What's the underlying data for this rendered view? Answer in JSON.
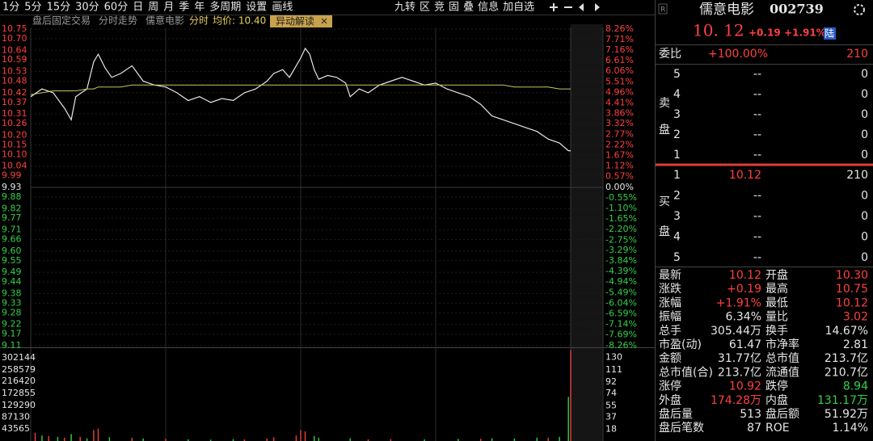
{
  "toolbar": {
    "periods": [
      "1分",
      "5分",
      "15分",
      "30分",
      "60分",
      "日",
      "周",
      "月",
      "季",
      "年",
      "多周期",
      "设置",
      "画线"
    ],
    "tools": [
      "九转",
      "区",
      "竞",
      "固",
      "叠",
      "信息",
      "加自选"
    ]
  },
  "subheader": {
    "items": [
      "盘后固定交易",
      "分时走势",
      "儒意电影",
      "分时"
    ],
    "avg_label": "均价: 10.40",
    "badge": "异动解读"
  },
  "chart_data": [
    {
      "type": "line",
      "xlim": [
        0,
        240
      ],
      "ylim": [
        9.11,
        10.75
      ],
      "y2lim": [
        -8.26,
        8.26
      ],
      "grid": true,
      "yticks": [
        10.75,
        {
          "value": 10.7,
          "label": "10.70"
        },
        10.64,
        10.59,
        10.53,
        10.48,
        10.42,
        10.37,
        10.31,
        10.26,
        {
          "value": 10.2,
          "label": "10.20"
        },
        10.15,
        {
          "value": 10.1,
          "label": "10.10"
        },
        10.04,
        9.99,
        9.93,
        9.88,
        9.82,
        9.77,
        9.71,
        9.66,
        {
          "value": 9.6,
          "label": "9.60"
        },
        9.55,
        9.49,
        9.44,
        9.38,
        9.33,
        9.28,
        9.22,
        9.17,
        9.11
      ],
      "y2ticks": [
        {
          "value": 8.26,
          "label": "8.26%"
        },
        {
          "value": 7.71,
          "label": "7.71%"
        },
        {
          "value": 7.16,
          "label": "7.16%"
        },
        {
          "value": 6.61,
          "label": "6.61%"
        },
        {
          "value": 6.06,
          "label": "6.06%"
        },
        {
          "value": 5.51,
          "label": "5.51%"
        },
        {
          "value": 4.96,
          "label": "4.96%"
        },
        {
          "value": 4.41,
          "label": "4.41%"
        },
        {
          "value": 3.86,
          "label": "3.86%"
        },
        {
          "value": 3.32,
          "label": "3.32%"
        },
        {
          "value": 2.77,
          "label": "2.77%"
        },
        {
          "value": 2.22,
          "label": "2.22%"
        },
        {
          "value": 1.67,
          "label": "1.67%"
        },
        {
          "value": 1.12,
          "label": "1.12%"
        },
        {
          "value": 0.57,
          "label": "0.57%"
        },
        {
          "value": 0,
          "label": "0.00%"
        },
        {
          "value": -0.55,
          "label": "-0.55%"
        },
        {
          "value": -1.1,
          "label": "-1.10%"
        },
        {
          "value": -1.65,
          "label": "-1.65%"
        },
        {
          "value": -2.2,
          "label": "-2.20%"
        },
        {
          "value": -2.75,
          "label": "-2.75%"
        },
        {
          "value": -3.29,
          "label": "-3.29%"
        },
        {
          "value": -3.84,
          "label": "-3.84%"
        },
        {
          "value": -4.39,
          "label": "-4.39%"
        },
        {
          "value": -4.94,
          "label": "-4.94%"
        },
        {
          "value": -5.49,
          "label": "-5.49%"
        },
        {
          "value": -6.04,
          "label": "-6.04%"
        },
        {
          "value": -6.59,
          "label": "-6.59%"
        },
        {
          "value": -7.14,
          "label": "-7.14%"
        },
        {
          "value": -7.69,
          "label": "-7.69%"
        },
        {
          "value": -8.26,
          "label": "-8.26%"
        }
      ],
      "x": [
        0,
        5,
        10,
        15,
        18,
        20,
        25,
        28,
        30,
        33,
        36,
        40,
        45,
        50,
        55,
        60,
        65,
        70,
        75,
        80,
        85,
        90,
        95,
        100,
        105,
        108,
        112,
        115,
        118,
        120,
        122,
        124,
        126,
        128,
        132,
        136,
        140,
        142,
        146,
        150,
        155,
        160,
        165,
        170,
        175,
        180,
        185,
        190,
        195,
        200,
        205,
        210,
        215,
        220,
        225,
        230,
        235,
        239,
        240
      ],
      "series": [
        {
          "color": "#e6e6e6",
          "values": [
            10.4,
            10.44,
            10.42,
            10.34,
            10.28,
            10.4,
            10.44,
            10.58,
            10.62,
            10.55,
            10.5,
            10.52,
            10.56,
            10.48,
            10.46,
            10.45,
            10.42,
            10.38,
            10.4,
            10.37,
            10.39,
            10.38,
            10.42,
            10.44,
            10.48,
            10.52,
            10.54,
            10.5,
            10.56,
            10.6,
            10.65,
            10.62,
            10.54,
            10.49,
            10.51,
            10.5,
            10.47,
            10.4,
            10.44,
            10.42,
            10.46,
            10.48,
            10.5,
            10.48,
            10.46,
            10.47,
            10.44,
            10.42,
            10.4,
            10.36,
            10.3,
            10.28,
            10.26,
            10.24,
            10.22,
            10.18,
            10.16,
            10.12,
            10.12
          ]
        },
        {
          "color": "#c8c864",
          "values": [
            10.41,
            10.42,
            10.43,
            10.43,
            10.43,
            10.43,
            10.44,
            10.44,
            10.45,
            10.45,
            10.45,
            10.45,
            10.46,
            10.46,
            10.46,
            10.46,
            10.46,
            10.46,
            10.46,
            10.46,
            10.46,
            10.46,
            10.46,
            10.46,
            10.46,
            10.46,
            10.46,
            10.46,
            10.46,
            10.46,
            10.46,
            10.46,
            10.46,
            10.46,
            10.46,
            10.46,
            10.46,
            10.46,
            10.46,
            10.46,
            10.46,
            10.46,
            10.46,
            10.46,
            10.46,
            10.46,
            10.46,
            10.46,
            10.46,
            10.46,
            10.46,
            10.46,
            10.45,
            10.45,
            10.45,
            10.45,
            10.44,
            10.44,
            10.44
          ]
        }
      ]
    },
    {
      "type": "bar",
      "xlim": [
        0,
        240
      ],
      "ylim": [
        0,
        340000
      ],
      "y2lim": [
        0,
        146
      ],
      "yticks": [
        302144,
        258579,
        216420,
        172855,
        129290,
        87130,
        43565
      ],
      "y2ticks": [
        130,
        111,
        92,
        74,
        55,
        37,
        18
      ],
      "series": [
        {
          "color": "#e03c3c",
          "x": [
            2,
            8,
            15,
            22,
            28,
            30,
            45,
            60,
            95,
            105,
            108,
            118,
            120,
            122,
            150,
            160,
            200,
            230,
            240
          ],
          "values": [
            30000,
            18000,
            12000,
            15000,
            40000,
            45000,
            12000,
            8000,
            6000,
            9000,
            14000,
            20000,
            40000,
            35000,
            6000,
            7000,
            8000,
            12000,
            330000
          ]
        },
        {
          "color": "#33c24a",
          "x": [
            5,
            12,
            18,
            25,
            35,
            50,
            70,
            80,
            90,
            126,
            128,
            142,
            175,
            190,
            205,
            215,
            225,
            235,
            239
          ],
          "values": [
            20000,
            15000,
            25000,
            10000,
            14000,
            9000,
            6000,
            5000,
            7000,
            18000,
            12000,
            10000,
            6000,
            8000,
            10000,
            9000,
            12000,
            15000,
            160000
          ]
        }
      ]
    }
  ],
  "quote": {
    "badge": "R",
    "name": "儒意电影",
    "code": "002739",
    "price": "10. 12",
    "change": "+0.19",
    "pct": "+1.91%",
    "tag": "陆"
  },
  "order_book": {
    "weibi_label": "委比",
    "weibi": "+100.00%",
    "weibi_vol": "210",
    "sell_label": [
      "卖",
      "盘"
    ],
    "buy_label": [
      "买",
      "盘"
    ],
    "sell": [
      [
        "5",
        "--",
        "0"
      ],
      [
        "4",
        "--",
        "0"
      ],
      [
        "3",
        "--",
        "0"
      ],
      [
        "2",
        "--",
        "0"
      ],
      [
        "1",
        "--",
        "0"
      ]
    ],
    "buy": [
      [
        "1",
        "10.12",
        "210"
      ],
      [
        "2",
        "--",
        "0"
      ],
      [
        "3",
        "--",
        "0"
      ],
      [
        "4",
        "--",
        "0"
      ],
      [
        "5",
        "--",
        "0"
      ]
    ]
  },
  "stats": [
    [
      "最新",
      "10.12",
      "开盘",
      "10.30"
    ],
    [
      "涨跌",
      "+0.19",
      "最高",
      "10.75"
    ],
    [
      "涨幅",
      "+1.91%",
      "最低",
      "10.12"
    ],
    [
      "振幅",
      "6.34%",
      "量比",
      "3.02"
    ],
    [
      "总手",
      "305.44万",
      "换手",
      "14.67%"
    ],
    [
      "市盈(动)",
      "61.47",
      "市净率",
      "2.81"
    ],
    [
      "金额",
      "31.77亿",
      "总市值",
      "213.7亿"
    ],
    [
      "总市值(合)",
      "213.7亿",
      "流通值",
      "210.7亿"
    ],
    [
      "涨停",
      "10.92",
      "跌停",
      "8.94"
    ],
    [
      "外盘",
      "174.28万",
      "内盘",
      "131.17万"
    ],
    [
      "盘后量",
      "513",
      "盘后额",
      "51.92万"
    ],
    [
      "盘后笔数",
      "87",
      "ROE",
      "1.14%"
    ]
  ]
}
